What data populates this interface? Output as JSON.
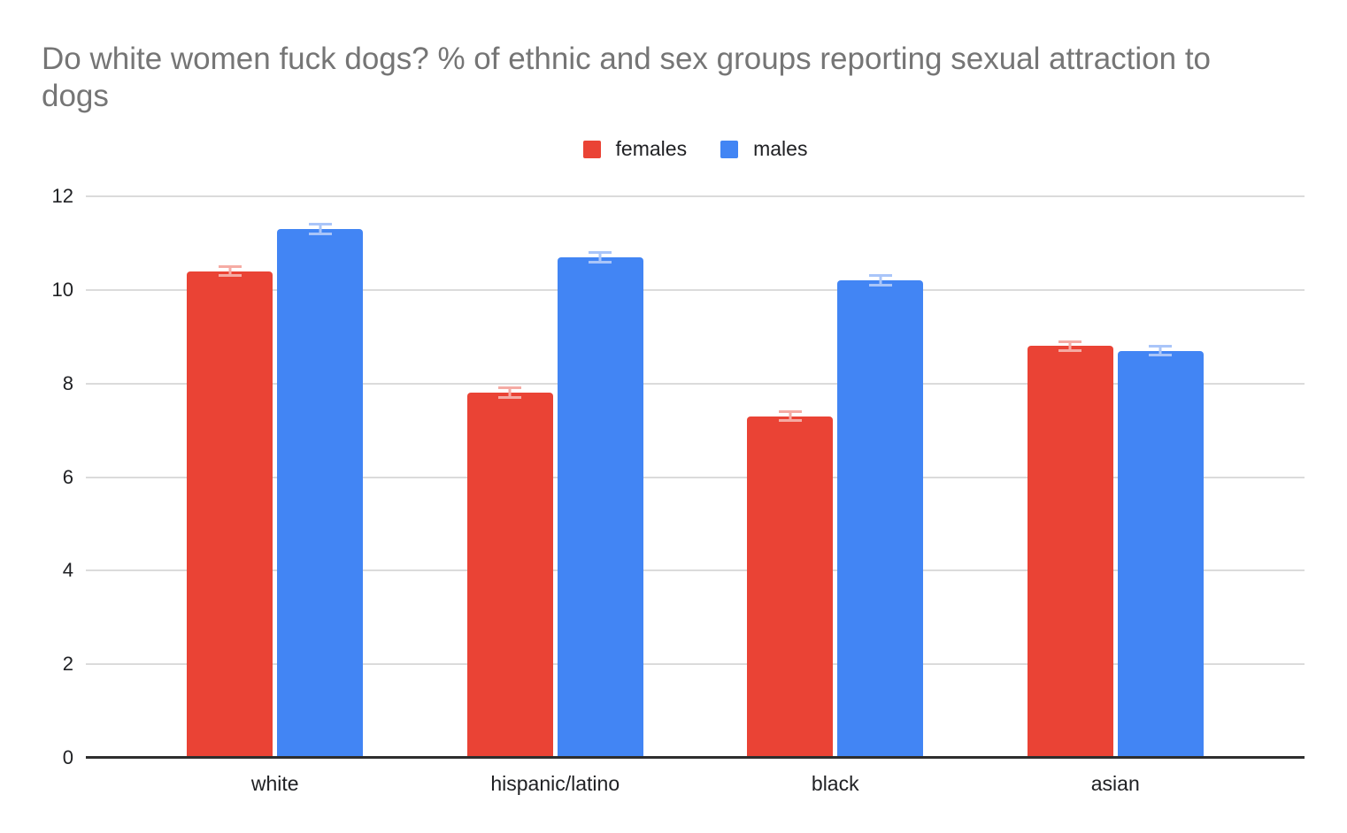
{
  "title": "Do white women fuck dogs? % of ethnic and sex groups reporting sexual attraction to dogs",
  "colors": {
    "females": "#EA4335",
    "males": "#4285F4",
    "females_light": "#F5ABA4",
    "males_light": "#A9C5F9",
    "grid": "#dbdbdb",
    "axis_line": "#2e2e2e",
    "title_text": "#757575",
    "tick_text": "#202124"
  },
  "chart_data": {
    "type": "bar",
    "title": "Do white women fuck dogs? % of ethnic and sex groups reporting sexual attraction to dogs",
    "categories": [
      "white",
      "hispanic/latino",
      "black",
      "asian"
    ],
    "series": [
      {
        "name": "females",
        "color": "#EA4335",
        "light_color": "#F5ABA4",
        "values": [
          10.4,
          7.8,
          7.3,
          8.8
        ],
        "errors": [
          0.1,
          0.1,
          0.1,
          0.1
        ]
      },
      {
        "name": "males",
        "color": "#4285F4",
        "light_color": "#A9C5F9",
        "values": [
          11.3,
          10.7,
          10.2,
          8.7
        ],
        "errors": [
          0.1,
          0.1,
          0.1,
          0.1
        ]
      }
    ],
    "xlabel": "",
    "ylabel": "",
    "ylim": [
      0,
      12
    ],
    "yticks": [
      0,
      2,
      4,
      6,
      8,
      10,
      12
    ],
    "ytick_labels": [
      "0",
      "2",
      "4",
      "6",
      "8",
      "10",
      "12"
    ],
    "grid": true,
    "error_bars": true,
    "legend_position": "top"
  }
}
